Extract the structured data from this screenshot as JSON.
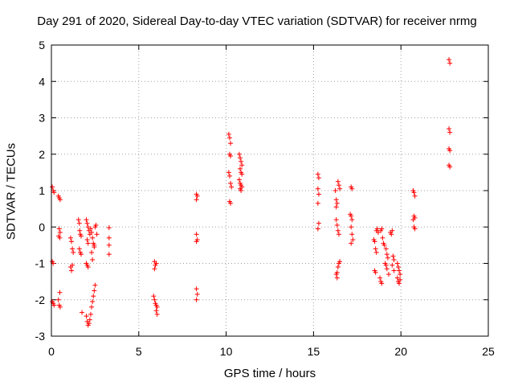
{
  "chart_data": {
    "type": "scatter",
    "title": "Day 291 of 2020, Sidereal Day-to-day VTEC variation (SDTVAR) for receiver nrmg",
    "xlabel": "GPS time / hours",
    "ylabel": "SDTVAR / TECUs",
    "xlim": [
      0,
      25
    ],
    "ylim": [
      -3,
      5
    ],
    "xticks": [
      "0",
      "5",
      "10",
      "15",
      "20",
      "25"
    ],
    "yticks": [
      "-3",
      "-2",
      "-1",
      "0",
      "1",
      "2",
      "3",
      "4",
      "5"
    ],
    "grid": true,
    "marker": "+",
    "color": "#ff0000",
    "series": [
      {
        "name": "SDTVAR",
        "points": [
          [
            0.05,
            1.1
          ],
          [
            0.1,
            1.0
          ],
          [
            0.15,
            0.95
          ],
          [
            0.05,
            -0.95
          ],
          [
            0.1,
            -1.0
          ],
          [
            0.05,
            -2.05
          ],
          [
            0.1,
            -2.1
          ],
          [
            0.15,
            -2.15
          ],
          [
            0.4,
            0.85
          ],
          [
            0.45,
            0.8
          ],
          [
            0.5,
            0.75
          ],
          [
            0.45,
            -0.05
          ],
          [
            0.5,
            -0.15
          ],
          [
            0.42,
            -0.25
          ],
          [
            0.48,
            -0.3
          ],
          [
            0.4,
            -2.0
          ],
          [
            0.45,
            -2.15
          ],
          [
            0.5,
            -2.2
          ],
          [
            0.48,
            -1.8
          ],
          [
            1.1,
            -0.3
          ],
          [
            1.15,
            -0.4
          ],
          [
            1.2,
            -0.6
          ],
          [
            1.25,
            -0.7
          ],
          [
            1.1,
            -1.1
          ],
          [
            1.15,
            -1.2
          ],
          [
            1.2,
            -1.05
          ],
          [
            1.55,
            0.2
          ],
          [
            1.6,
            0.1
          ],
          [
            1.62,
            -0.1
          ],
          [
            1.65,
            -0.2
          ],
          [
            1.7,
            -0.25
          ],
          [
            1.6,
            -0.6
          ],
          [
            1.65,
            -0.7
          ],
          [
            1.7,
            -0.75
          ],
          [
            1.75,
            -2.35
          ],
          [
            2.0,
            0.2
          ],
          [
            2.05,
            0.1
          ],
          [
            2.1,
            0.0
          ],
          [
            2.15,
            -0.1
          ],
          [
            2.2,
            -0.2
          ],
          [
            2.05,
            -0.35
          ],
          [
            2.1,
            -0.45
          ],
          [
            2.0,
            -1.0
          ],
          [
            2.05,
            -1.05
          ],
          [
            2.1,
            -1.1
          ],
          [
            2.0,
            -2.45
          ],
          [
            2.05,
            -2.6
          ],
          [
            2.1,
            -2.7
          ],
          [
            2.15,
            -2.65
          ],
          [
            2.2,
            -2.55
          ],
          [
            2.25,
            -2.4
          ],
          [
            2.3,
            -2.2
          ],
          [
            2.35,
            -2.05
          ],
          [
            2.4,
            -1.9
          ],
          [
            2.45,
            -1.75
          ],
          [
            2.5,
            -1.6
          ],
          [
            2.25,
            -0.05
          ],
          [
            2.3,
            -0.15
          ],
          [
            2.35,
            -0.3
          ],
          [
            2.4,
            -0.45
          ],
          [
            2.45,
            -0.5
          ],
          [
            2.5,
            0.0
          ],
          [
            2.55,
            0.05
          ],
          [
            2.6,
            -0.2
          ],
          [
            2.3,
            -0.7
          ],
          [
            2.35,
            -0.9
          ],
          [
            2.45,
            -0.55
          ],
          [
            3.3,
            -0.02
          ],
          [
            3.3,
            -0.3
          ],
          [
            3.3,
            -0.5
          ],
          [
            3.3,
            -0.75
          ],
          [
            5.9,
            -0.95
          ],
          [
            5.95,
            -1.05
          ],
          [
            6.0,
            -1.0
          ],
          [
            5.9,
            -1.15
          ],
          [
            5.85,
            -1.9
          ],
          [
            5.9,
            -2.0
          ],
          [
            5.95,
            -2.1
          ],
          [
            6.0,
            -2.15
          ],
          [
            6.05,
            -2.2
          ],
          [
            6.0,
            -2.3
          ],
          [
            6.05,
            -2.4
          ],
          [
            8.3,
            0.9
          ],
          [
            8.35,
            0.85
          ],
          [
            8.3,
            0.75
          ],
          [
            8.3,
            -0.2
          ],
          [
            8.35,
            -0.35
          ],
          [
            8.3,
            -0.4
          ],
          [
            8.3,
            -1.7
          ],
          [
            8.35,
            -1.85
          ],
          [
            8.3,
            -2.0
          ],
          [
            10.15,
            2.55
          ],
          [
            10.2,
            2.45
          ],
          [
            10.25,
            2.3
          ],
          [
            10.2,
            2.0
          ],
          [
            10.25,
            1.95
          ],
          [
            10.15,
            1.5
          ],
          [
            10.2,
            1.4
          ],
          [
            10.25,
            1.2
          ],
          [
            10.3,
            1.1
          ],
          [
            10.2,
            0.7
          ],
          [
            10.25,
            0.65
          ],
          [
            10.75,
            2.0
          ],
          [
            10.8,
            1.9
          ],
          [
            10.85,
            1.8
          ],
          [
            10.9,
            1.7
          ],
          [
            10.8,
            1.6
          ],
          [
            10.85,
            1.5
          ],
          [
            10.9,
            1.45
          ],
          [
            10.75,
            1.3
          ],
          [
            10.8,
            1.2
          ],
          [
            10.85,
            1.15
          ],
          [
            10.9,
            1.1
          ],
          [
            10.8,
            1.05
          ],
          [
            10.85,
            1.0
          ],
          [
            15.25,
            1.45
          ],
          [
            15.3,
            1.35
          ],
          [
            15.25,
            1.05
          ],
          [
            15.3,
            0.9
          ],
          [
            15.25,
            0.65
          ],
          [
            15.3,
            0.1
          ],
          [
            15.25,
            -0.05
          ],
          [
            16.25,
            1.0
          ],
          [
            16.3,
            0.75
          ],
          [
            16.35,
            0.65
          ],
          [
            16.3,
            0.55
          ],
          [
            16.4,
            1.25
          ],
          [
            16.45,
            1.15
          ],
          [
            16.5,
            1.05
          ],
          [
            16.3,
            0.2
          ],
          [
            16.35,
            0.05
          ],
          [
            16.4,
            -0.1
          ],
          [
            16.45,
            -0.2
          ],
          [
            16.3,
            -1.3
          ],
          [
            16.35,
            -1.25
          ],
          [
            16.4,
            -1.1
          ],
          [
            16.45,
            -1.0
          ],
          [
            16.5,
            -0.95
          ],
          [
            16.35,
            -1.4
          ],
          [
            17.15,
            1.1
          ],
          [
            17.2,
            1.05
          ],
          [
            17.1,
            0.35
          ],
          [
            17.15,
            0.3
          ],
          [
            17.2,
            0.2
          ],
          [
            17.15,
            0.0
          ],
          [
            17.2,
            -0.2
          ],
          [
            17.25,
            -0.35
          ],
          [
            17.15,
            -0.45
          ],
          [
            18.45,
            -0.35
          ],
          [
            18.5,
            -0.4
          ],
          [
            18.6,
            -0.1
          ],
          [
            18.65,
            -0.05
          ],
          [
            18.7,
            -0.15
          ],
          [
            18.55,
            -0.6
          ],
          [
            18.6,
            -0.7
          ],
          [
            18.5,
            -1.2
          ],
          [
            18.55,
            -1.25
          ],
          [
            18.8,
            -1.4
          ],
          [
            18.85,
            -1.5
          ],
          [
            18.9,
            -1.55
          ],
          [
            18.85,
            -0.1
          ],
          [
            18.9,
            -0.05
          ],
          [
            18.95,
            -0.3
          ],
          [
            19.0,
            -0.45
          ],
          [
            19.05,
            -0.5
          ],
          [
            19.15,
            -0.6
          ],
          [
            19.2,
            -0.75
          ],
          [
            19.25,
            -0.85
          ],
          [
            19.1,
            -1.0
          ],
          [
            19.15,
            -1.05
          ],
          [
            19.2,
            -1.15
          ],
          [
            19.3,
            -1.3
          ],
          [
            19.4,
            -0.15
          ],
          [
            19.45,
            -0.2
          ],
          [
            19.5,
            -0.1
          ],
          [
            19.55,
            -0.8
          ],
          [
            19.6,
            -0.9
          ],
          [
            19.5,
            -1.05
          ],
          [
            19.6,
            -1.2
          ],
          [
            19.8,
            -1.0
          ],
          [
            19.85,
            -1.1
          ],
          [
            19.9,
            -1.2
          ],
          [
            19.95,
            -1.3
          ],
          [
            19.8,
            -1.4
          ],
          [
            19.85,
            -1.5
          ],
          [
            19.9,
            -1.55
          ],
          [
            19.95,
            -1.45
          ],
          [
            20.7,
            1.0
          ],
          [
            20.75,
            0.95
          ],
          [
            20.8,
            0.85
          ],
          [
            20.75,
            0.3
          ],
          [
            20.8,
            0.25
          ],
          [
            20.7,
            0.2
          ],
          [
            20.75,
            0.0
          ],
          [
            20.8,
            -0.05
          ],
          [
            22.75,
            4.6
          ],
          [
            22.8,
            4.5
          ],
          [
            22.75,
            2.7
          ],
          [
            22.8,
            2.6
          ],
          [
            22.75,
            2.15
          ],
          [
            22.8,
            2.1
          ],
          [
            22.75,
            1.7
          ],
          [
            22.8,
            1.65
          ]
        ]
      }
    ]
  }
}
